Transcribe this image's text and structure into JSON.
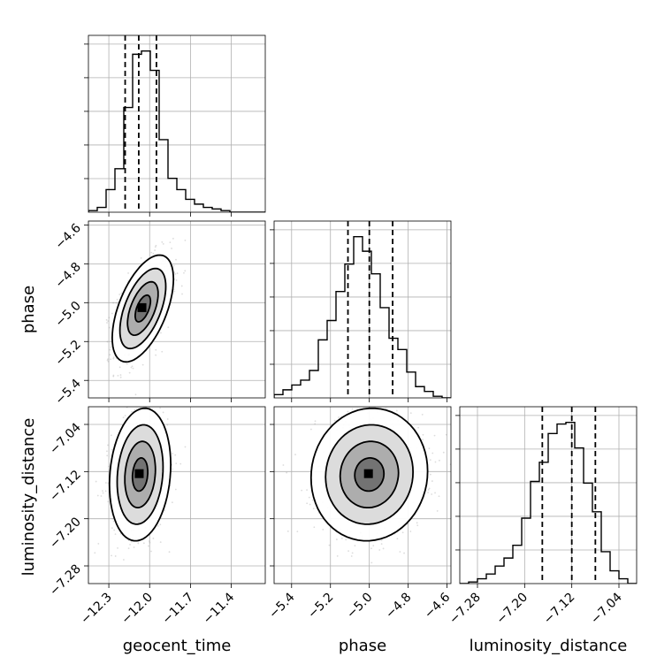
{
  "chart_data": {
    "type": "corner",
    "parameters": [
      "geocent_time",
      "phase",
      "luminosity_distance"
    ],
    "axes": {
      "geocent_time": {
        "label": "geocent_time",
        "range": [
          -12.45,
          -11.15
        ],
        "ticks": [
          -12.3,
          -12.0,
          -11.7,
          -11.4
        ],
        "tick_labels": [
          "−12.3",
          "−12.0",
          "−11.7",
          "−11.4"
        ]
      },
      "phase": {
        "label": "phase",
        "range": [
          -5.49,
          -4.58
        ],
        "ticks": [
          -5.4,
          -5.2,
          -5.0,
          -4.8,
          -4.6
        ],
        "tick_labels": [
          "−5.4",
          "−5.2",
          "−5.0",
          "−4.8",
          "−4.6"
        ]
      },
      "luminosity_distance": {
        "label": "luminosity_distance",
        "range": [
          -7.31,
          -7.01
        ],
        "ticks": [
          -7.28,
          -7.2,
          -7.12,
          -7.04
        ],
        "tick_labels": [
          "−7.28",
          "−7.20",
          "−7.12",
          "−7.04"
        ]
      }
    },
    "grid": true,
    "quantiles": {
      "geocent_time": [
        -12.18,
        -12.08,
        -11.95
      ],
      "phase": [
        -5.11,
        -5.0,
        -4.88
      ],
      "luminosity_distance": [
        -7.17,
        -7.12,
        -7.08
      ]
    },
    "histograms": {
      "geocent_time": {
        "edges_range": [
          -12.45,
          -11.15
        ],
        "counts": [
          1,
          3,
          14,
          27,
          65,
          98,
          100,
          88,
          45,
          21,
          14,
          8,
          5,
          3,
          2,
          1,
          0,
          0,
          0,
          0
        ]
      },
      "phase": {
        "edges_range": [
          -5.49,
          -4.58
        ],
        "counts": [
          2,
          5,
          8,
          11,
          17,
          36,
          48,
          66,
          83,
          100,
          91,
          77,
          56,
          37,
          30,
          16,
          7,
          4,
          1,
          0
        ]
      },
      "luminosity_distance": {
        "edges_range": [
          -7.31,
          -7.01
        ],
        "counts": [
          0,
          1,
          3,
          6,
          11,
          16,
          24,
          41,
          64,
          76,
          94,
          100,
          101,
          85,
          63,
          45,
          20,
          8,
          3,
          0
        ]
      }
    },
    "pairs": [
      {
        "x": "geocent_time",
        "y": "phase",
        "center": [
          -12.05,
          -5.03
        ],
        "sd": [
          0.09,
          0.11
        ],
        "rho": 0.55
      },
      {
        "x": "geocent_time",
        "y": "luminosity_distance",
        "center": [
          -12.07,
          -7.125
        ],
        "sd": [
          0.09,
          0.045
        ],
        "rho": 0.15
      },
      {
        "x": "phase",
        "y": "luminosity_distance",
        "center": [
          -5.0,
          -7.125
        ],
        "sd": [
          0.12,
          0.045
        ],
        "rho": 0.05
      }
    ],
    "contour_levels_sigma": [
      0.5,
      1.0,
      1.5,
      2.0
    ]
  }
}
